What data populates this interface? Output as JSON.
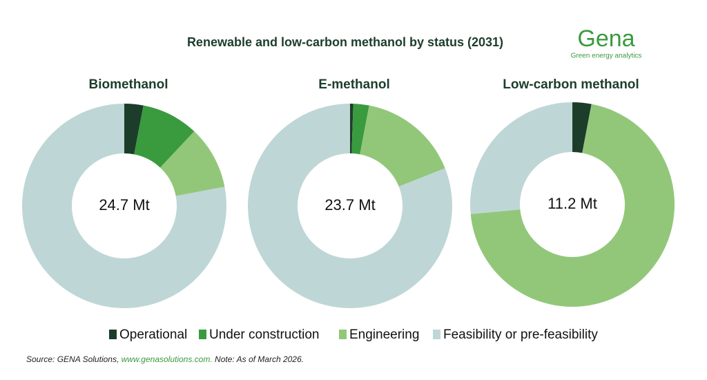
{
  "title": "Renewable and low-carbon methanol by status (2031)",
  "logo": {
    "name": "Gena",
    "tagline": "Green energy analytics"
  },
  "source": {
    "prefix": "Source: GENA Solutions, ",
    "link": "www.genasolutions.com.",
    "note": " Note: As of March 2026."
  },
  "chart_data": [
    {
      "type": "pie",
      "title": "Biomethanol",
      "center_label": "24.7 Mt",
      "categories": [
        "Operational",
        "Under construction",
        "Engineering",
        "Feasibility or pre-feasibility"
      ],
      "colors": [
        "#1d3d2b",
        "#3a9a3e",
        "#92c77a",
        "#bfd6d6"
      ],
      "values": [
        3,
        9,
        10,
        78
      ]
    },
    {
      "type": "pie",
      "title": "E-methanol",
      "center_label": "23.7 Mt",
      "categories": [
        "Operational",
        "Under construction",
        "Engineering",
        "Feasibility or pre-feasibility"
      ],
      "colors": [
        "#1d3d2b",
        "#3a9a3e",
        "#92c77a",
        "#bfd6d6"
      ],
      "values": [
        0.5,
        2.5,
        16,
        81
      ]
    },
    {
      "type": "pie",
      "title": "Low-carbon methanol",
      "center_label": "11.2 Mt",
      "categories": [
        "Operational",
        "Under construction",
        "Engineering",
        "Feasibility or pre-feasibility"
      ],
      "colors": [
        "#1d3d2b",
        "#3a9a3e",
        "#92c77a",
        "#bfd6d6"
      ],
      "values": [
        3,
        0,
        70.5,
        26.5
      ]
    }
  ]
}
